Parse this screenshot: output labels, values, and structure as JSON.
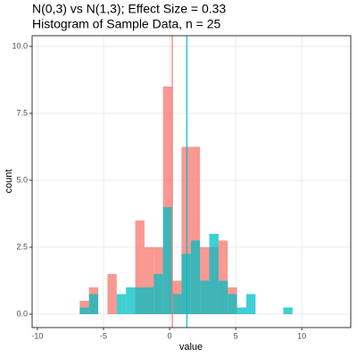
{
  "chart_data": {
    "type": "histogram",
    "title": "N(0,3) vs N(1,3); Effect Size = 0.33",
    "subtitle": "Histogram of Sample Data, n = 25",
    "x_label": "value",
    "y_label": "count",
    "bins": [
      -6.8,
      -6.1,
      -5.4,
      -4.7,
      -4.0,
      -3.3,
      -2.6,
      -1.9,
      -1.2,
      -0.5,
      0.2,
      0.9,
      1.6,
      2.3,
      3.0,
      3.7,
      4.4,
      5.1,
      5.8,
      6.5,
      7.2,
      7.9,
      8.6,
      9.3
    ],
    "series": [
      {
        "color": "#F8766D",
        "values": [
          0.5,
          1.0,
          0,
          1.5,
          0,
          0,
          3.5,
          2.5,
          2.5,
          8.5,
          1.25,
          6.25,
          6.25,
          2.5,
          2.5,
          2.75,
          1.0,
          0,
          0,
          0,
          0,
          0,
          0
        ]
      },
      {
        "color": "#00BFC4",
        "values": [
          0.25,
          0.75,
          0,
          0,
          0.75,
          1.0,
          1.0,
          1.0,
          1.5,
          4.0,
          0.75,
          2.25,
          2.75,
          1.25,
          3.0,
          1.25,
          0.75,
          0.25,
          0.75,
          0,
          0,
          0,
          0.25
        ]
      }
    ],
    "vlines": [
      {
        "x": 0.2,
        "color": "#F8766D"
      },
      {
        "x": 1.3,
        "color": "#00BFC4"
      }
    ],
    "xlim": [
      -10.4,
      13.7
    ],
    "ylim": [
      -0.5,
      10.4
    ],
    "xticks": [
      -10,
      -5,
      0,
      5,
      10
    ],
    "yticks": [
      {
        "value": 0,
        "label": "0.0"
      },
      2.5,
      {
        "value": 5,
        "label": "5.0"
      },
      7.5,
      {
        "value": 10,
        "label": "10.0"
      }
    ],
    "grid": true,
    "opacity": 0.75
  }
}
